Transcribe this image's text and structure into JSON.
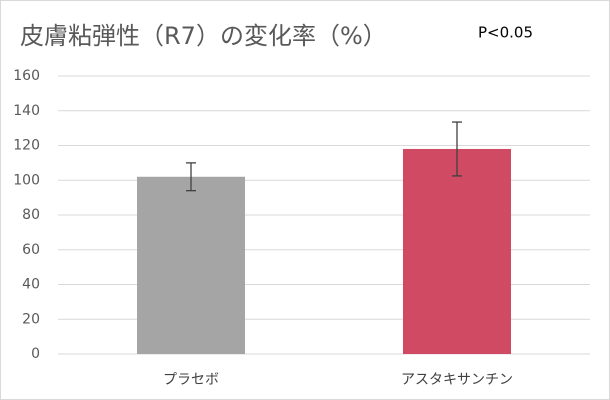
{
  "chart_data": {
    "type": "bar",
    "title": "皮膚粘弾性（R7）の変化率（%）",
    "annotation": "P<0.05",
    "categories": [
      "プラセボ",
      "アスタキサンチン"
    ],
    "values": [
      102,
      118
    ],
    "errors": [
      8,
      15.5
    ],
    "colors": [
      "#a5a5a5",
      "#d14a63"
    ],
    "ylim": [
      0,
      160
    ],
    "yticks": [
      0,
      20,
      40,
      60,
      80,
      100,
      120,
      140,
      160
    ],
    "grid": true
  }
}
